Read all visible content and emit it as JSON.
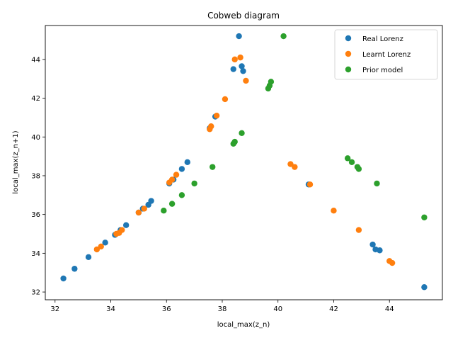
{
  "chart_data": {
    "type": "scatter",
    "title": "Cobweb diagram",
    "xlabel": "local_max(z_n)",
    "ylabel": "local_max(z_n+1)",
    "xlim": [
      31.65,
      45.9
    ],
    "ylim": [
      31.6,
      45.75
    ],
    "xticks": [
      32,
      34,
      36,
      38,
      40,
      42,
      44
    ],
    "yticks": [
      32,
      34,
      36,
      38,
      40,
      42,
      44
    ],
    "legend_position": "top-right",
    "grid": false,
    "series": [
      {
        "name": "Real Lorenz",
        "color": "#1f77b4",
        "points": [
          [
            32.3,
            32.7
          ],
          [
            32.7,
            33.2
          ],
          [
            33.2,
            33.8
          ],
          [
            33.8,
            34.55
          ],
          [
            34.15,
            34.95
          ],
          [
            34.35,
            35.2
          ],
          [
            34.55,
            35.45
          ],
          [
            35.0,
            36.1
          ],
          [
            35.15,
            36.3
          ],
          [
            35.35,
            36.5
          ],
          [
            35.45,
            36.7
          ],
          [
            36.1,
            37.6
          ],
          [
            36.25,
            37.8
          ],
          [
            36.55,
            38.35
          ],
          [
            36.75,
            38.7
          ],
          [
            37.55,
            40.45
          ],
          [
            37.75,
            41.05
          ],
          [
            38.4,
            43.5
          ],
          [
            38.6,
            45.2
          ],
          [
            38.7,
            43.65
          ],
          [
            38.75,
            43.4
          ],
          [
            41.1,
            37.55
          ],
          [
            43.4,
            34.45
          ],
          [
            43.5,
            34.2
          ],
          [
            43.65,
            34.15
          ],
          [
            45.25,
            32.25
          ]
        ]
      },
      {
        "name": "Learnt Lorenz",
        "color": "#ff7f0e",
        "points": [
          [
            33.5,
            34.2
          ],
          [
            33.65,
            34.35
          ],
          [
            34.2,
            35.0
          ],
          [
            34.3,
            35.05
          ],
          [
            34.4,
            35.2
          ],
          [
            35.0,
            36.1
          ],
          [
            35.2,
            36.3
          ],
          [
            36.1,
            37.65
          ],
          [
            36.2,
            37.8
          ],
          [
            36.35,
            38.05
          ],
          [
            37.55,
            40.4
          ],
          [
            37.6,
            40.55
          ],
          [
            37.8,
            41.1
          ],
          [
            38.1,
            41.95
          ],
          [
            38.45,
            44.0
          ],
          [
            38.65,
            44.1
          ],
          [
            38.85,
            42.9
          ],
          [
            40.45,
            38.6
          ],
          [
            40.6,
            38.45
          ],
          [
            41.15,
            37.55
          ],
          [
            42.0,
            36.2
          ],
          [
            42.9,
            35.2
          ],
          [
            44.0,
            33.6
          ],
          [
            44.1,
            33.5
          ]
        ]
      },
      {
        "name": "Prior model",
        "color": "#2ca02c",
        "points": [
          [
            35.9,
            36.2
          ],
          [
            36.2,
            36.55
          ],
          [
            36.55,
            37.0
          ],
          [
            37.0,
            37.6
          ],
          [
            37.65,
            38.45
          ],
          [
            38.4,
            39.65
          ],
          [
            38.45,
            39.75
          ],
          [
            38.7,
            40.2
          ],
          [
            39.65,
            42.5
          ],
          [
            39.7,
            42.65
          ],
          [
            39.75,
            42.85
          ],
          [
            40.2,
            45.2
          ],
          [
            42.5,
            38.9
          ],
          [
            42.65,
            38.7
          ],
          [
            42.85,
            38.45
          ],
          [
            42.9,
            38.35
          ],
          [
            43.55,
            37.6
          ],
          [
            45.25,
            35.85
          ]
        ]
      }
    ]
  }
}
